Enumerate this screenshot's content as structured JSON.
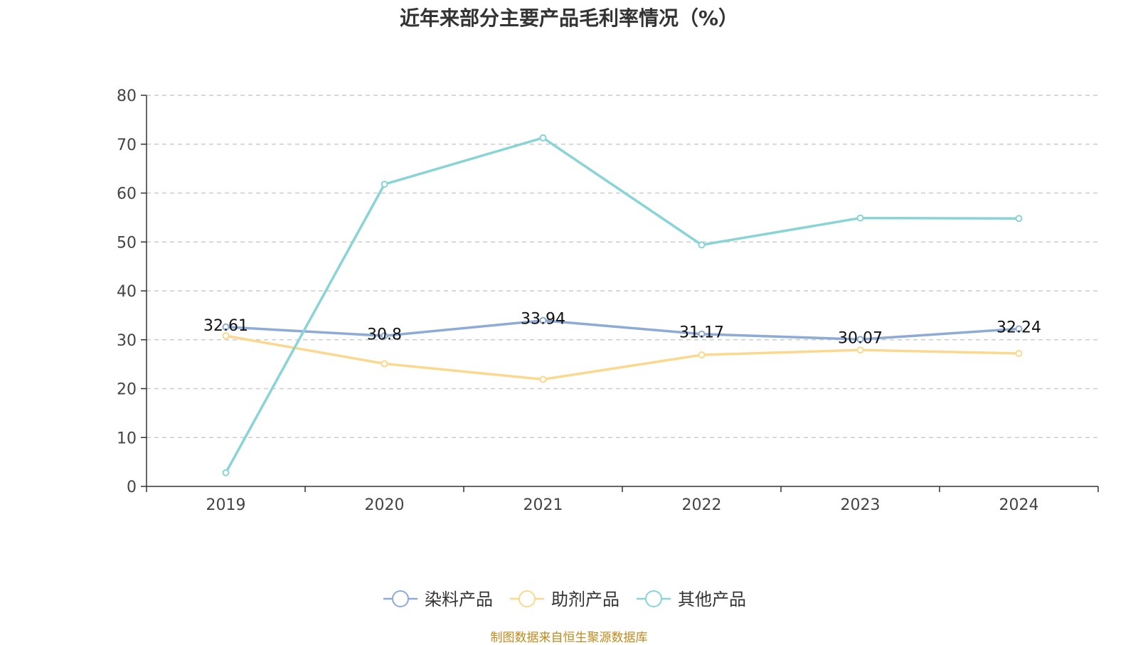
{
  "title": "近年来部分主要产品毛利率情况（%）",
  "source": "制图数据来自恒生聚源数据库",
  "chart_data": {
    "type": "line",
    "title": "近年来部分主要产品毛利率情况（%）",
    "categories": [
      "2019",
      "2020",
      "2021",
      "2022",
      "2023",
      "2024"
    ],
    "ylim": [
      0,
      80
    ],
    "yticks": [
      0,
      10,
      20,
      30,
      40,
      50,
      60,
      70,
      80
    ],
    "grid": true,
    "legend_position": "bottom",
    "series": [
      {
        "name": "染料产品",
        "color": "#8eaad6",
        "values": [
          32.61,
          30.8,
          33.94,
          31.17,
          30.07,
          32.24
        ],
        "show_labels": true
      },
      {
        "name": "助剂产品",
        "color": "#fbd88e",
        "values": [
          30.8,
          25.1,
          21.9,
          26.9,
          27.9,
          27.2
        ],
        "show_labels": false
      },
      {
        "name": "其他产品",
        "color": "#88d4d6",
        "values": [
          2.8,
          61.8,
          71.3,
          49.4,
          54.9,
          54.8
        ],
        "show_labels": false
      }
    ]
  }
}
